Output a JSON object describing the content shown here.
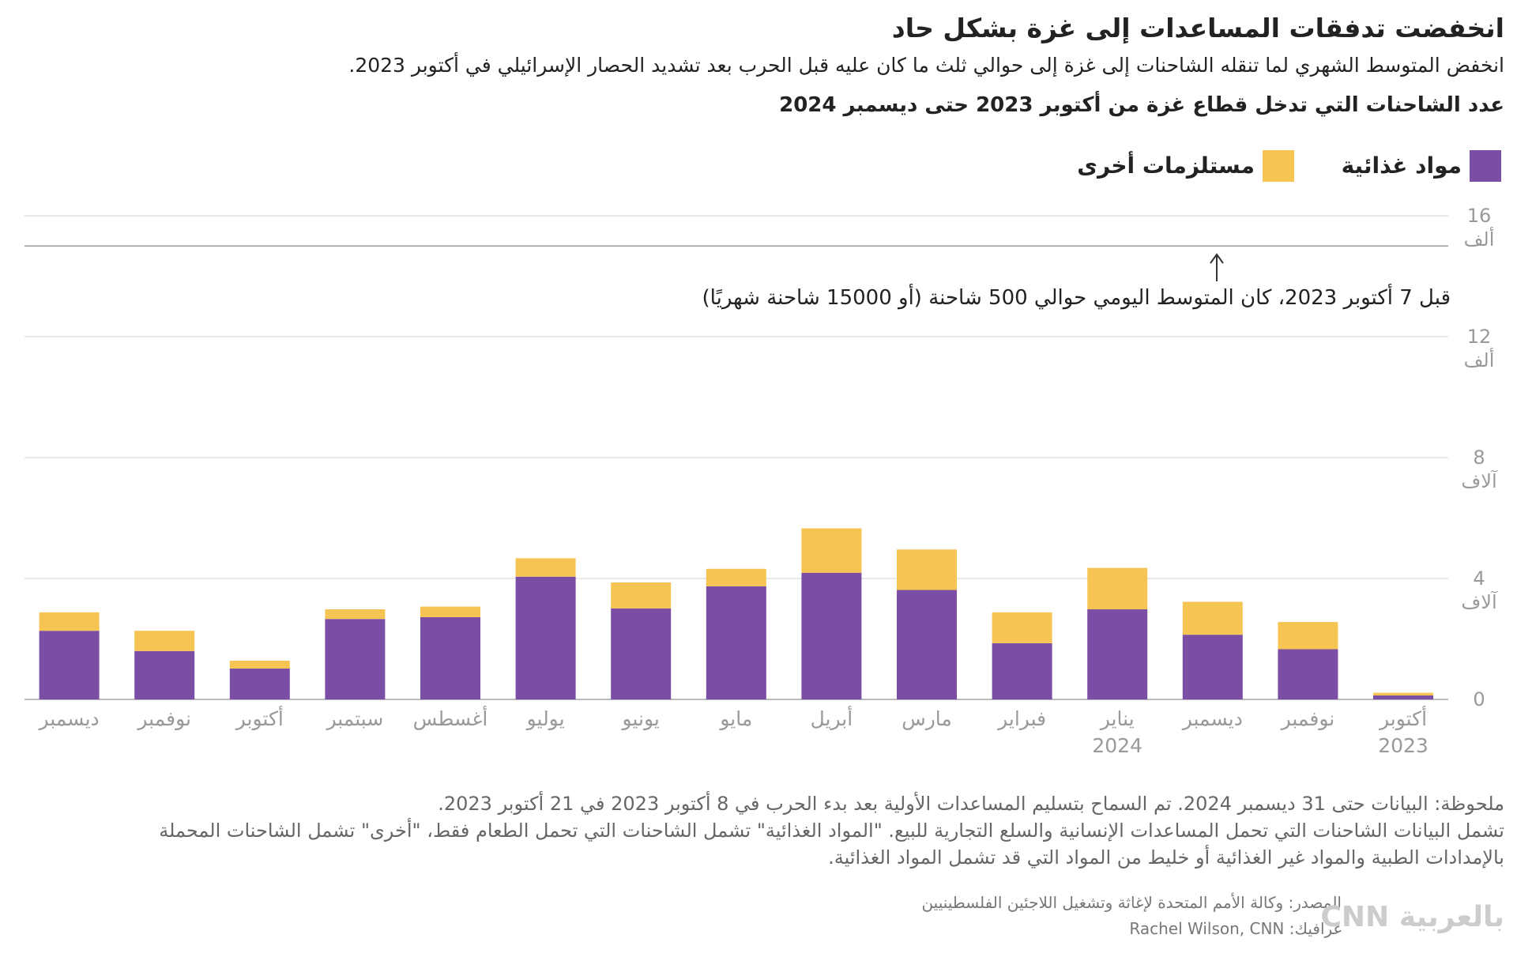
{
  "chart_data": {
    "type": "bar",
    "stacked": true,
    "title": "انخفضت تدفقات المساعدات إلى غزة بشكل حاد",
    "subtitle": "انخفض المتوسط الشهري لما تنقله الشاحنات إلى غزة إلى حوالي ثلث ما كان عليه قبل الحرب بعد تشديد الحصار الإسرائيلي في أكتوبر 2023.",
    "chart_title": "عدد الشاحنات التي تدخل قطاع غزة من أكتوبر 2023 حتى ديسمبر 2024",
    "categories": [
      "أكتوبر\n2023",
      "نوفمبر",
      "ديسمبر",
      "يناير\n2024",
      "فبراير",
      "مارس",
      "أبريل",
      "مايو",
      "يونيو",
      "يوليو",
      "أغسطس",
      "سبتمبر",
      "أكتوبر",
      "نوفمبر",
      "ديسمبر"
    ],
    "series": [
      {
        "name": "مواد غذائية",
        "color": "#7b4ea6",
        "values": [
          130,
          1660,
          2140,
          2980,
          1860,
          3620,
          4190,
          3740,
          3010,
          4060,
          2720,
          2660,
          1020,
          1600,
          2270
        ]
      },
      {
        "name": "مستلزمات أخرى",
        "color": "#f6c453",
        "values": [
          90,
          900,
          1090,
          1370,
          1020,
          1340,
          1470,
          580,
          860,
          610,
          350,
          320,
          260,
          670,
          610
        ]
      }
    ],
    "ylim": [
      0,
      16000
    ],
    "yticks": [
      {
        "value": 0,
        "label": "0"
      },
      {
        "value": 4000,
        "label": "4\nآلاف"
      },
      {
        "value": 8000,
        "label": "8\nآلاف"
      },
      {
        "value": 12000,
        "label": "12\nألف"
      },
      {
        "value": 16000,
        "label": "16\nألف"
      }
    ],
    "grid": true,
    "reference_line": {
      "value": 15000,
      "label": "قبل 7 أكتوبر 2023، كان المتوسط اليومي حوالي 500 شاحنة (أو 15000 شاحنة شهريًا)"
    },
    "notes": [
      "ملحوظة: البيانات حتى 31 ديسمبر 2024. تم السماح بتسليم المساعدات الأولية بعد بدء الحرب في 8 أكتوبر 2023 في 21 أكتوبر 2023.",
      "تشمل البيانات الشاحنات التي تحمل المساعدات الإنسانية والسلع التجارية للبيع. \"المواد الغذائية\" تشمل الشاحنات التي تحمل الطعام فقط، \"أخرى\" تشمل الشاحنات المحملة بالإمدادات الطبية والمواد غير الغذائية أو خليط من المواد التي قد تشمل المواد الغذائية."
    ],
    "source": "المصدر: وكالة الأمم المتحدة لإغاثة وتشغيل اللاجئين الفلسطينيين",
    "credit": "غرافيك: Rachel Wilson, CNN",
    "logo": "CNN بالعربية"
  }
}
